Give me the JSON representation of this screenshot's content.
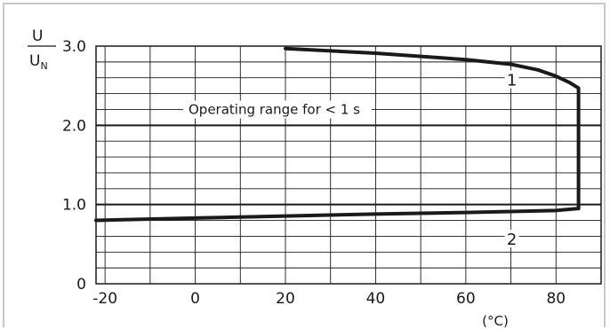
{
  "chart_data": {
    "type": "line",
    "ylabel": {
      "numerator": "U",
      "denominator": "U",
      "denominator_subscript": "N"
    },
    "xlabel": "(°C)",
    "xlim": [
      -22,
      90
    ],
    "ylim": [
      0,
      3.0
    ],
    "x_ticks": [
      -20,
      0,
      20,
      40,
      60,
      80
    ],
    "x_tick_labels": [
      "-20",
      "0",
      "20",
      "40",
      "60",
      "80"
    ],
    "y_ticks": [
      0,
      1.0,
      2.0,
      3.0
    ],
    "y_tick_labels": [
      "0",
      "1.0",
      "2.0",
      "3.0"
    ],
    "grid": {
      "x_step": 10,
      "y_step": 0.2,
      "major_y": [
        1.0,
        2.0
      ]
    },
    "annotation": "Operating range for < 1 s",
    "series": [
      {
        "name": "1",
        "label_at": {
          "x": 70,
          "y": 2.58
        },
        "points": [
          [
            20,
            2.97
          ],
          [
            40,
            2.91
          ],
          [
            60,
            2.83
          ],
          [
            70,
            2.77
          ],
          [
            76,
            2.7
          ],
          [
            80,
            2.62
          ],
          [
            83,
            2.54
          ],
          [
            85,
            2.47
          ],
          [
            85,
            0.95
          ]
        ]
      },
      {
        "name": "2",
        "label_at": {
          "x": 70,
          "y": 0.57
        },
        "points": [
          [
            -22,
            0.8
          ],
          [
            0,
            0.83
          ],
          [
            20,
            0.855
          ],
          [
            40,
            0.88
          ],
          [
            60,
            0.9
          ],
          [
            80,
            0.925
          ],
          [
            85,
            0.95
          ]
        ]
      }
    ]
  }
}
